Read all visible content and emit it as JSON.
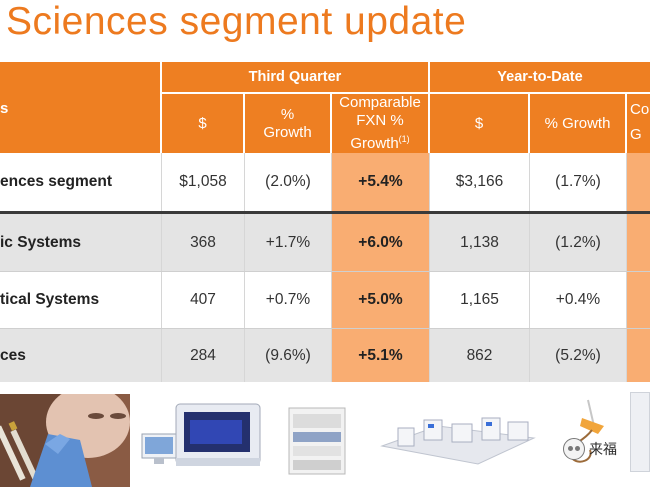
{
  "slide": {
    "title": "Sciences segment update"
  },
  "table": {
    "corner_label": "s",
    "groups": {
      "third_quarter": "Third Quarter",
      "year_to_date": "Year-to-Date"
    },
    "subheaders": {
      "q_dollar": "$",
      "q_growth": "% Growth",
      "q_comparable": "Comparable FXN % Growth",
      "q_comparable_note": "(1)",
      "ytd_dollar": "$",
      "ytd_growth": "% Growth",
      "ytd_cut_top": "Co",
      "ytd_cut_bottom": "G"
    },
    "rows": [
      {
        "label": "ences segment",
        "q_dollar": "$1,058",
        "q_growth": "(2.0%)",
        "q_comparable": "+5.4%",
        "ytd_dollar": "$3,166",
        "ytd_growth": "(1.7%)"
      },
      {
        "label": "ic Systems",
        "q_dollar": "368",
        "q_growth": "+1.7%",
        "q_comparable": "+6.0%",
        "ytd_dollar": "1,138",
        "ytd_growth": "(1.2%)"
      },
      {
        "label": "tical Systems",
        "q_dollar": "407",
        "q_growth": "+0.7%",
        "q_comparable": "+5.0%",
        "ytd_dollar": "1,165",
        "ytd_growth": "+0.4%"
      },
      {
        "label": "ces",
        "q_dollar": "284",
        "q_growth": "(9.6%)",
        "q_comparable": "+5.1%",
        "ytd_dollar": "862",
        "ytd_growth": "(5.2%)"
      }
    ]
  },
  "watermark": {
    "text": "来福"
  },
  "colors": {
    "accent": "#ee7f22",
    "highlight": "#f9ad72",
    "gray_row": "#e4e4e4"
  }
}
